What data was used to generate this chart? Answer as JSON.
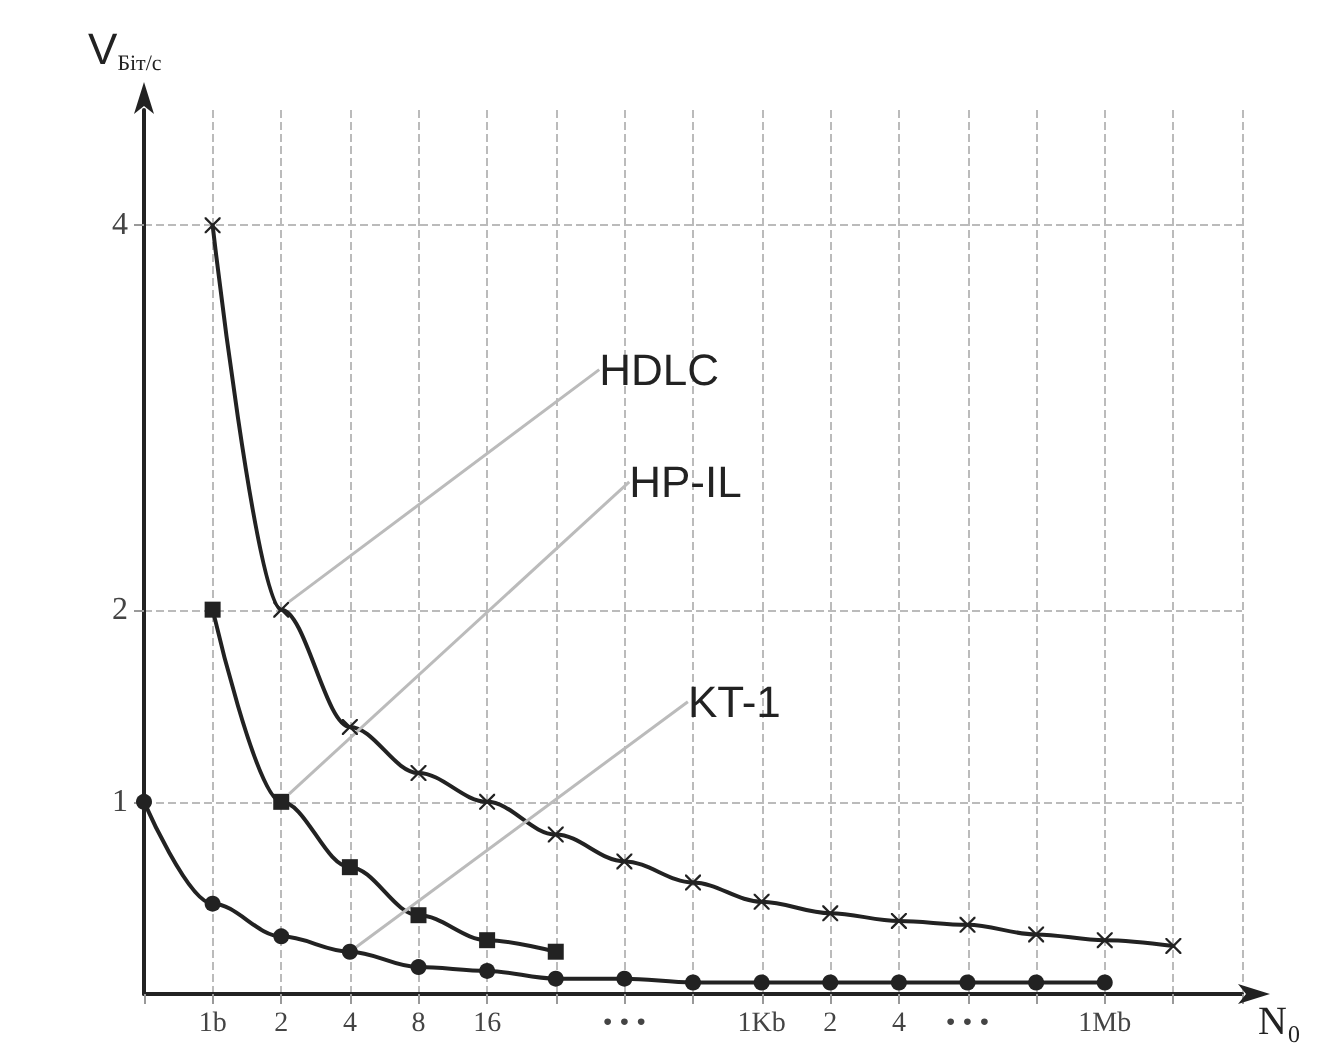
{
  "chart_data": {
    "type": "line",
    "xlabel": "N₀",
    "ylabel": "V$_{Біт/с}$",
    "categories": [
      null,
      "1b",
      "2",
      "4",
      "8",
      "16",
      null,
      "• • •",
      null,
      "1Kb",
      "2",
      "4",
      "• • •",
      null,
      "1Mb",
      null,
      null
    ],
    "series": [
      {
        "name": "HDLC",
        "color": "#222222",
        "marker": "cross",
        "values": [
          null,
          4,
          2,
          1.39,
          1.15,
          1.0,
          0.83,
          0.69,
          0.58,
          0.48,
          0.42,
          0.38,
          0.36,
          0.31,
          0.28,
          0.25,
          null
        ]
      },
      {
        "name": "HP-IL",
        "color": "#222222",
        "marker": "square",
        "values": [
          null,
          2,
          1,
          0.66,
          0.41,
          0.28,
          0.22,
          null,
          null,
          null,
          null,
          null,
          null,
          null,
          null,
          null,
          null
        ]
      },
      {
        "name": "KT-1",
        "color": "#222222",
        "marker": "circle",
        "values": [
          1,
          0.47,
          0.3,
          0.22,
          0.14,
          0.12,
          0.08,
          0.08,
          0.06,
          0.06,
          0.06,
          0.06,
          0.06,
          0.06,
          0.06,
          null,
          null
        ]
      }
    ],
    "ylim": [
      0,
      4.6
    ],
    "yticks": [
      1,
      2,
      4
    ],
    "grid": true,
    "line_style": "solid"
  }
}
